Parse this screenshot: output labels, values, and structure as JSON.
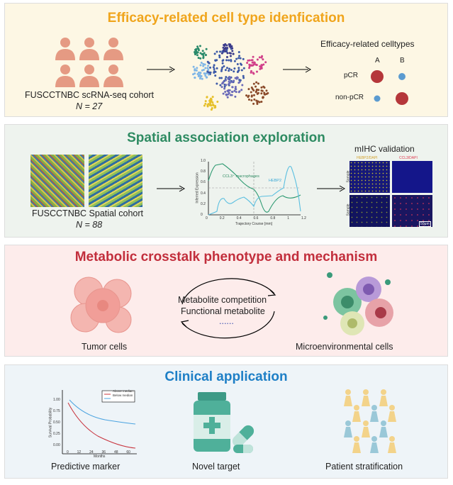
{
  "colors": {
    "panel1": "#fdf7e4",
    "panel2": "#eef3ee",
    "panel3": "#fdeceb",
    "panel4": "#eef4f8",
    "orange": "#f0a51c",
    "green": "#2e8b62",
    "red": "#c22e3c",
    "blue": "#1e7fc6",
    "pcr_red": "#b5373a",
    "pcr_blue": "#5b9bd0"
  },
  "panel1": {
    "title": "Efficacy-related cell type idenfication",
    "cohort": "FUSCCTNBC scRNA-seq cohort",
    "n": "N = 27",
    "legend_title": "Efficacy-related celltypes",
    "col_a": "A",
    "col_b": "B",
    "row1": "pCR",
    "row2": "non-pCR"
  },
  "panel2": {
    "title": "Spatial association exploration",
    "cohort": "FUSCCTNBC Spatial cohort",
    "n": "N = 88",
    "chart": {
      "ylabel": "Inferred Expression",
      "xlabel": "Trajectory Course [mm]",
      "series1": "CCL3⁺ macrophages",
      "series2": "HEBP2",
      "yticks": [
        "0",
        "0.2",
        "0.4",
        "0.6",
        "0.8",
        "1.0"
      ],
      "xticks": [
        "0",
        "0.2",
        "0.4",
        "0.6",
        "0.8",
        "1",
        "1.2"
      ]
    },
    "mihc": {
      "title": "mIHC validation",
      "col1": "HEBP2/DAPI",
      "col2": "CCL3/DAPI",
      "row": "Sample",
      "scale": "50μm"
    }
  },
  "panel3": {
    "title": "Metabolic crosstalk phenotype and mechanism",
    "line1": "Metabolite competition",
    "line2": "Functional metabolite",
    "dots": "......",
    "left": "Tumor cells",
    "right": "Microenvironmental cells"
  },
  "panel4": {
    "title": "Clinical application",
    "chart": {
      "ylabel": "Survival Probability",
      "xlabel": "Months",
      "legend1": "Above median",
      "legend2": "Below median",
      "yticks": [
        "0.00",
        "0.25",
        "0.50",
        "0.75",
        "1.00"
      ],
      "xticks": [
        "0",
        "12",
        "24",
        "36",
        "48",
        "60"
      ]
    },
    "label1": "Predictive marker",
    "label2": "Novel target",
    "label3": "Patient stratification"
  }
}
